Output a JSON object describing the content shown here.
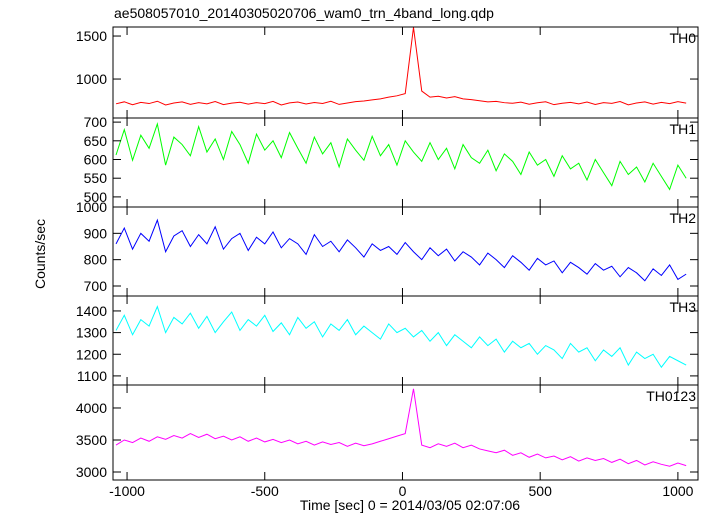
{
  "chart_data": {
    "type": "line",
    "title": "ae508057010_20140305020706_wam0_trn_4band_long.qdp",
    "xlabel": "Time [sec] 0 = 2014/03/05 02:07:06",
    "ylabel": "Counts/sec",
    "xlim": [
      -1051,
      1073
    ],
    "xticks": [
      -1000,
      -500,
      0,
      500,
      1000
    ],
    "x": [
      -1040,
      -1010,
      -980,
      -950,
      -920,
      -890,
      -860,
      -830,
      -800,
      -770,
      -740,
      -710,
      -680,
      -650,
      -620,
      -590,
      -560,
      -530,
      -500,
      -470,
      -440,
      -410,
      -380,
      -350,
      -320,
      -290,
      -260,
      -230,
      -200,
      -170,
      -140,
      -110,
      -80,
      -50,
      -20,
      10,
      40,
      70,
      100,
      130,
      160,
      190,
      220,
      250,
      280,
      310,
      340,
      370,
      400,
      430,
      460,
      490,
      520,
      550,
      580,
      610,
      640,
      670,
      700,
      730,
      760,
      790,
      820,
      850,
      880,
      910,
      940,
      970,
      1000,
      1030
    ],
    "series": [
      {
        "name": "TH0",
        "color": "#ff0000",
        "ylim": [
          547,
          1605
        ],
        "yticks": [
          1000,
          1500
        ],
        "values": [
          712,
          735,
          701,
          728,
          715,
          742,
          698,
          721,
          734,
          706,
          725,
          711,
          739,
          703,
          720,
          730,
          708,
          726,
          714,
          740,
          699,
          723,
          733,
          710,
          727,
          716,
          741,
          705,
          722,
          738,
          745,
          758,
          770,
          790,
          805,
          830,
          1600,
          860,
          790,
          800,
          780,
          795,
          770,
          760,
          748,
          735,
          740,
          725,
          718,
          731,
          707,
          724,
          736,
          702,
          719,
          729,
          711,
          733,
          704,
          726,
          717,
          739,
          700,
          722,
          735,
          709,
          728,
          714,
          737,
          720
        ]
      },
      {
        "name": "TH1",
        "color": "#00ff00",
        "ylim": [
          473,
          711
        ],
        "yticks": [
          500,
          550,
          600,
          650,
          700
        ],
        "values": [
          612,
          680,
          598,
          665,
          630,
          695,
          585,
          660,
          640,
          610,
          688,
          620,
          655,
          600,
          675,
          640,
          590,
          668,
          625,
          650,
          605,
          672,
          630,
          590,
          660,
          615,
          645,
          580,
          655,
          625,
          598,
          662,
          610,
          640,
          585,
          650,
          620,
          595,
          645,
          600,
          630,
          575,
          640,
          605,
          590,
          625,
          570,
          615,
          595,
          560,
          620,
          585,
          600,
          555,
          610,
          575,
          590,
          545,
          600,
          565,
          530,
          595,
          560,
          580,
          540,
          590,
          555,
          520,
          585,
          550
        ]
      },
      {
        "name": "TH2",
        "color": "#0000ff",
        "ylim": [
          662,
          1000
        ],
        "yticks": [
          700,
          800,
          900,
          1000
        ],
        "values": [
          860,
          920,
          840,
          900,
          870,
          950,
          830,
          890,
          910,
          850,
          895,
          860,
          925,
          840,
          880,
          900,
          835,
          885,
          860,
          905,
          845,
          880,
          860,
          820,
          895,
          850,
          870,
          830,
          875,
          845,
          810,
          860,
          835,
          850,
          820,
          865,
          830,
          800,
          845,
          815,
          840,
          795,
          830,
          810,
          780,
          825,
          800,
          770,
          815,
          790,
          760,
          805,
          780,
          795,
          750,
          790,
          770,
          745,
          785,
          760,
          775,
          735,
          770,
          750,
          720,
          765,
          740,
          780,
          725,
          745
        ]
      },
      {
        "name": "TH3",
        "color": "#00ffff",
        "ylim": [
          1058,
          1469
        ],
        "yticks": [
          1100,
          1200,
          1300,
          1400
        ],
        "values": [
          1310,
          1380,
          1290,
          1360,
          1330,
          1420,
          1300,
          1370,
          1340,
          1390,
          1320,
          1375,
          1300,
          1350,
          1395,
          1310,
          1360,
          1330,
          1380,
          1305,
          1345,
          1290,
          1370,
          1320,
          1350,
          1280,
          1340,
          1310,
          1360,
          1290,
          1330,
          1300,
          1270,
          1340,
          1300,
          1320,
          1280,
          1310,
          1260,
          1300,
          1240,
          1290,
          1260,
          1230,
          1280,
          1240,
          1270,
          1210,
          1260,
          1230,
          1250,
          1200,
          1240,
          1220,
          1180,
          1250,
          1210,
          1230,
          1170,
          1220,
          1190,
          1230,
          1150,
          1210,
          1180,
          1200,
          1140,
          1190,
          1170,
          1150
        ]
      },
      {
        "name": "TH0123",
        "color": "#ff00ff",
        "ylim": [
          2875,
          4359
        ],
        "yticks": [
          3000,
          3500,
          4000
        ],
        "values": [
          3420,
          3500,
          3460,
          3530,
          3480,
          3550,
          3510,
          3570,
          3530,
          3600,
          3540,
          3590,
          3520,
          3560,
          3500,
          3550,
          3480,
          3530,
          3470,
          3510,
          3460,
          3500,
          3440,
          3480,
          3420,
          3470,
          3430,
          3460,
          3400,
          3450,
          3410,
          3440,
          3480,
          3520,
          3560,
          3600,
          4300,
          3420,
          3380,
          3440,
          3400,
          3450,
          3380,
          3420,
          3360,
          3330,
          3300,
          3340,
          3260,
          3300,
          3230,
          3280,
          3220,
          3250,
          3190,
          3240,
          3170,
          3220,
          3180,
          3210,
          3150,
          3200,
          3130,
          3180,
          3110,
          3160,
          3120,
          3090,
          3140,
          3100
        ]
      }
    ]
  }
}
